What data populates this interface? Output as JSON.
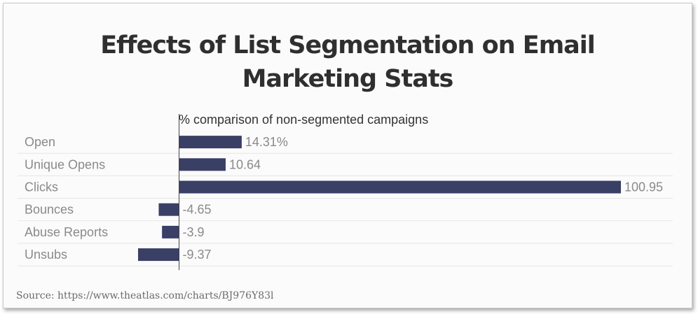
{
  "chart_data": {
    "type": "bar",
    "orientation": "horizontal",
    "title_lines": [
      "Effects of List Segmentation on Email",
      "Marketing Stats"
    ],
    "subtitle": "% comparison of non-segmented campaigns",
    "categories": [
      "Open",
      "Unique Opens",
      "Clicks",
      "Bounces",
      "Abuse Reports",
      "Unsubs"
    ],
    "values": [
      14.31,
      10.64,
      100.95,
      -4.65,
      -3.9,
      -9.37
    ],
    "value_labels": [
      "14.31%",
      "10.64",
      "100.95",
      "-4.65",
      "-3.9",
      "-9.37"
    ],
    "xlim": [
      -9.37,
      100.95
    ],
    "bar_color": "#3a3f66"
  },
  "source": "Source: https://www.theatlas.com/charts/BJ976Y83l"
}
